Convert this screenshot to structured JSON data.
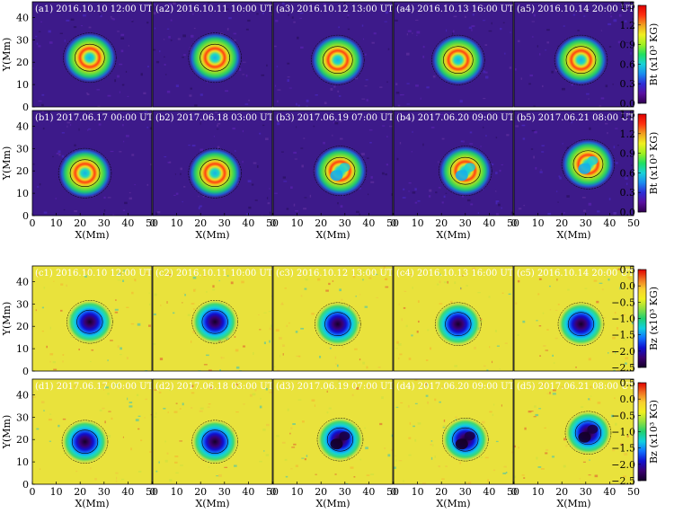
{
  "figure": {
    "rows": [
      {
        "id": "a",
        "quantity": "Bt",
        "colormap": "rainbow",
        "panels": [
          {
            "label": "(a1) 2016.10.10 12:00 UT",
            "center_mm": [
              24,
              22
            ],
            "umbra": "single"
          },
          {
            "label": "(a2) 2016.10.11 10:00 UT",
            "center_mm": [
              26,
              22
            ],
            "umbra": "single"
          },
          {
            "label": "(a3) 2016.10.12 13:00 UT",
            "center_mm": [
              27,
              21
            ],
            "umbra": "single"
          },
          {
            "label": "(a4) 2016.10.13 16:00 UT",
            "center_mm": [
              27,
              21
            ],
            "umbra": "single"
          },
          {
            "label": "(a5) 2016.10.14 20:00 UT",
            "center_mm": [
              28,
              21
            ],
            "umbra": "single"
          }
        ]
      },
      {
        "id": "b",
        "quantity": "Bt",
        "colormap": "rainbow",
        "panels": [
          {
            "label": "(b1) 2017.06.17 00:00 UT",
            "center_mm": [
              22,
              19
            ],
            "umbra": "single"
          },
          {
            "label": "(b2) 2017.06.18 03:00 UT",
            "center_mm": [
              26,
              19
            ],
            "umbra": "single"
          },
          {
            "label": "(b3) 2017.06.19 07:00 UT",
            "center_mm": [
              28,
              20
            ],
            "umbra": "split"
          },
          {
            "label": "(b4) 2017.06.20 09:00 UT",
            "center_mm": [
              30,
              20
            ],
            "umbra": "split"
          },
          {
            "label": "(b5) 2017.06.21 08:00 UT",
            "center_mm": [
              31,
              23
            ],
            "umbra": "split"
          }
        ]
      },
      {
        "id": "c",
        "quantity": "Bz",
        "colormap": "bz",
        "panels": [
          {
            "label": "(c1) 2016.10.10 12:00 UT",
            "center_mm": [
              24,
              22
            ],
            "umbra": "single"
          },
          {
            "label": "(c2) 2016.10.11 10:00 UT",
            "center_mm": [
              26,
              22
            ],
            "umbra": "single"
          },
          {
            "label": "(c3) 2016.10.12 13:00 UT",
            "center_mm": [
              27,
              21
            ],
            "umbra": "single"
          },
          {
            "label": "(c4) 2016.10.13 16:00 UT",
            "center_mm": [
              27,
              21
            ],
            "umbra": "single"
          },
          {
            "label": "(c5) 2016.10.14 20:00 UT",
            "center_mm": [
              28,
              21
            ],
            "umbra": "single"
          }
        ]
      },
      {
        "id": "d",
        "quantity": "Bz",
        "colormap": "bz",
        "panels": [
          {
            "label": "(d1) 2017.06.17 00:00 UT",
            "center_mm": [
              22,
              19
            ],
            "umbra": "single"
          },
          {
            "label": "(d2) 2017.06.18 03:00 UT",
            "center_mm": [
              26,
              19
            ],
            "umbra": "single"
          },
          {
            "label": "(d3) 2017.06.19 07:00 UT",
            "center_mm": [
              28,
              20
            ],
            "umbra": "split"
          },
          {
            "label": "(d4) 2017.06.20 09:00 UT",
            "center_mm": [
              30,
              20
            ],
            "umbra": "split"
          },
          {
            "label": "(d5) 2017.06.21 08:00 UT",
            "center_mm": [
              31,
              23
            ],
            "umbra": "split"
          }
        ]
      }
    ],
    "x_axis": {
      "label": "X(Mm)",
      "ticks": [
        "0",
        "10",
        "20",
        "30",
        "40",
        "50"
      ],
      "range": [
        0,
        50
      ]
    },
    "y_axis": {
      "label": "Y(Mm)",
      "ticks": [
        "0",
        "10",
        "20",
        "30",
        "40"
      ],
      "range": [
        0,
        47
      ]
    },
    "colorbars": {
      "bt": {
        "label": "Bt (x10³ KG)",
        "ticks": [
          "1.5",
          "1.2",
          "0.9",
          "0.6",
          "0.3",
          "0.0"
        ],
        "range": [
          0.0,
          1.5
        ]
      },
      "bz": {
        "label": "Bz (x10³ KG)",
        "ticks": [
          "0.5",
          "0.0",
          "−0.5",
          "−1.0",
          "−1.5",
          "−2.0",
          "−2.5"
        ],
        "range": [
          -2.5,
          0.5
        ]
      }
    },
    "colors": {
      "bt_scale": [
        "#300050",
        "#5a10a0",
        "#2d2dd8",
        "#1a8cf0",
        "#18d2d8",
        "#20e060",
        "#a0f020",
        "#f0f020",
        "#f0a020",
        "#ff3010",
        "#e00000"
      ],
      "bz_scale": [
        "#140028",
        "#3a0070",
        "#1010d0",
        "#1070ff",
        "#10d0e0",
        "#20d070",
        "#90e040",
        "#f0f020",
        "#f8d030",
        "#f07020",
        "#e00000"
      ],
      "bt_background": "#3d1a8a",
      "bz_background": "#e9e23c"
    }
  }
}
